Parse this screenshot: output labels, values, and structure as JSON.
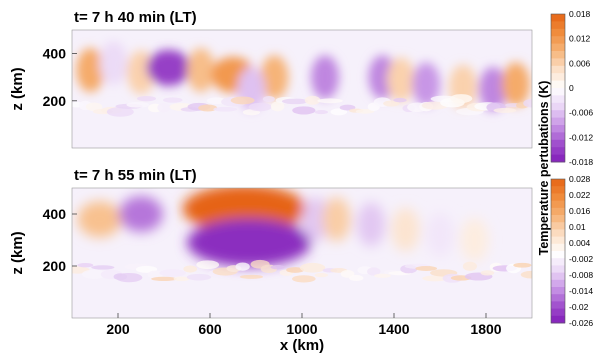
{
  "chart_data": [
    {
      "type": "heatmap",
      "title": "t= 7 h 40 min (LT)",
      "ylabel": "z (km)",
      "xlabel": "",
      "xlim": [
        0,
        2000
      ],
      "ylim": [
        0,
        500
      ],
      "yticks": [
        "400",
        "200"
      ],
      "ytick_values": [
        400,
        200
      ],
      "colorbar": {
        "label": "Temperature pertubations (K)",
        "ticks": [
          "0.018",
          "0.012",
          "0.006",
          "0",
          "-0.006",
          "-0.012",
          "-0.018"
        ],
        "tick_values": [
          0.018,
          0.012,
          0.006,
          0,
          -0.006,
          -0.012,
          -0.018
        ],
        "range": [
          -0.018,
          0.018
        ]
      },
      "features": [
        {
          "x": 80,
          "z": 330,
          "value": 0.01
        },
        {
          "x": 180,
          "z": 360,
          "value": -0.004
        },
        {
          "x": 300,
          "z": 320,
          "value": 0.006
        },
        {
          "x": 420,
          "z": 340,
          "value": -0.015
        },
        {
          "x": 560,
          "z": 330,
          "value": 0.008
        },
        {
          "x": 700,
          "z": 310,
          "value": 0.012
        },
        {
          "x": 880,
          "z": 300,
          "value": 0.009
        },
        {
          "x": 780,
          "z": 250,
          "value": -0.006
        },
        {
          "x": 1100,
          "z": 300,
          "value": -0.01
        },
        {
          "x": 1350,
          "z": 300,
          "value": -0.01
        },
        {
          "x": 1430,
          "z": 290,
          "value": 0.006
        },
        {
          "x": 1540,
          "z": 270,
          "value": -0.009
        },
        {
          "x": 1700,
          "z": 260,
          "value": 0.006
        },
        {
          "x": 1830,
          "z": 250,
          "value": -0.01
        },
        {
          "x": 1930,
          "z": 270,
          "value": 0.01
        }
      ]
    },
    {
      "type": "heatmap",
      "title": "t= 7 h 55 min (LT)",
      "ylabel": "z (km)",
      "xlabel": "x (km)",
      "xlim": [
        0,
        2000
      ],
      "ylim": [
        0,
        500
      ],
      "xticks": [
        "200",
        "600",
        "1000",
        "1400",
        "1800"
      ],
      "xtick_values": [
        200,
        600,
        1000,
        1400,
        1800
      ],
      "yticks": [
        "400",
        "200"
      ],
      "ytick_values": [
        400,
        200
      ],
      "colorbar": {
        "label": "Temperature pertubations (K)",
        "ticks": [
          "0.028",
          "0.022",
          "0.016",
          "0.01",
          "0.004",
          "-0.002",
          "-0.008",
          "-0.014",
          "-0.02",
          "-0.026"
        ],
        "tick_values": [
          0.028,
          0.022,
          0.016,
          0.01,
          0.004,
          -0.002,
          -0.008,
          -0.014,
          -0.02,
          -0.026
        ],
        "range": [
          -0.026,
          0.028
        ]
      },
      "features": [
        {
          "x": 120,
          "z": 380,
          "value": 0.012
        },
        {
          "x": 300,
          "z": 400,
          "value": -0.016
        },
        {
          "x": 750,
          "z": 420,
          "value": 0.028
        },
        {
          "x": 770,
          "z": 290,
          "value": -0.024
        },
        {
          "x": 1060,
          "z": 380,
          "value": -0.008
        },
        {
          "x": 1150,
          "z": 380,
          "value": 0.01
        },
        {
          "x": 1300,
          "z": 360,
          "value": -0.008
        },
        {
          "x": 1450,
          "z": 340,
          "value": 0.006
        },
        {
          "x": 1600,
          "z": 320,
          "value": -0.004
        },
        {
          "x": 1750,
          "z": 300,
          "value": 0.004
        }
      ]
    }
  ]
}
